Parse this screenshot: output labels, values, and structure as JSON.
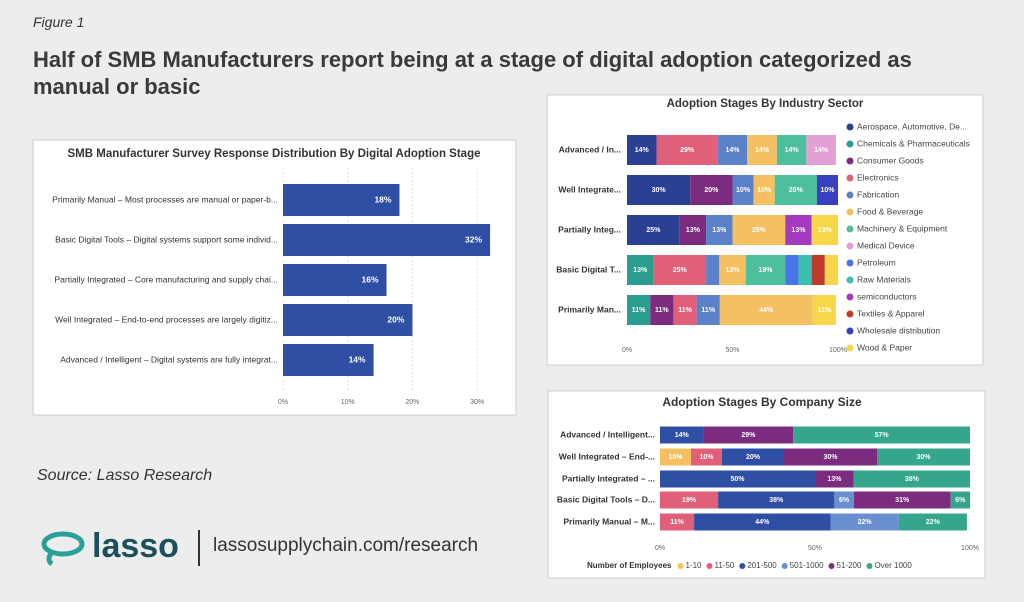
{
  "figure_label": "Figure 1",
  "title": "Half of SMB Manufacturers report being at a stage of digital adoption categorized as manual or basic",
  "source": "Source: Lasso Research",
  "logo_text": "lasso",
  "url": "lassosupplychain.com/research",
  "chart_data": [
    {
      "type": "hbar",
      "title": "SMB Manufacturer Survey Response Distribution By Digital Adoption Stage",
      "categories": [
        "Primarily Manual – Most processes are manual or paper-b...",
        "Basic Digital Tools – Digital systems support some individ...",
        "Partially Integrated – Core manufacturing and supply chai...",
        "Well Integrated – End-to-end processes are largely digitiz...",
        "Advanced / Intelligent – Digital systems are fully integrat..."
      ],
      "values": [
        18,
        32,
        16,
        20,
        14
      ],
      "value_labels": [
        "18%",
        "32%",
        "16%",
        "20%",
        "14%"
      ],
      "color": "#2e4fa3",
      "xlim": [
        0,
        34
      ],
      "xticks": [
        {
          "value": 0,
          "label": "0%"
        },
        {
          "value": 10,
          "label": "10%"
        },
        {
          "value": 20,
          "label": "20%"
        },
        {
          "value": 30,
          "label": "30%"
        }
      ],
      "grid": true
    },
    {
      "type": "stacked_hbar",
      "title": "Adoption Stages By Industry Sector",
      "categories": [
        "Advanced / In...",
        "Well Integrate...",
        "Partially Integ...",
        "Basic Digital T...",
        "Primarily Man..."
      ],
      "xlim": [
        0,
        100
      ],
      "xticks": [
        {
          "value": 0,
          "label": "0%"
        },
        {
          "value": 50,
          "label": "50%"
        },
        {
          "value": 100,
          "label": "100%"
        }
      ],
      "legend": "right",
      "series": [
        {
          "name": "Aerospace, Automotive, De...",
          "color": "#2b3f94",
          "values": [
            14,
            30,
            25,
            null,
            null
          ],
          "value_labels": [
            "14%",
            "30%",
            "25%",
            null,
            null
          ]
        },
        {
          "name": "Chemicals & Pharmaceuticals",
          "color": "#2a9d8f",
          "values": [
            null,
            null,
            null,
            12.5,
            11
          ],
          "value_labels": [
            null,
            null,
            null,
            "13%",
            "11%"
          ]
        },
        {
          "name": "Consumer Goods",
          "color": "#7b2c7f",
          "values": [
            null,
            20,
            12.5,
            null,
            11
          ],
          "value_labels": [
            null,
            "20%",
            "13%",
            null,
            "11%"
          ]
        },
        {
          "name": "Electronics",
          "color": "#e0607a",
          "values": [
            29,
            null,
            null,
            25,
            11
          ],
          "value_labels": [
            "29%",
            null,
            null,
            "25%",
            "11%"
          ]
        },
        {
          "name": "Fabrication",
          "color": "#5b82c9",
          "values": [
            14,
            10,
            12.5,
            6.25,
            11
          ],
          "value_labels": [
            "14%",
            "10%",
            "13%",
            null,
            "11%"
          ]
        },
        {
          "name": "Food & Beverage",
          "color": "#f5c062",
          "values": [
            14,
            10,
            25,
            12.5,
            44
          ],
          "value_labels": [
            "14%",
            "10%",
            "25%",
            "13%",
            "44%"
          ]
        },
        {
          "name": "Machinery & Equipment",
          "color": "#4dbf9c",
          "values": [
            14,
            20,
            null,
            18.75,
            null
          ],
          "value_labels": [
            "14%",
            "20%",
            null,
            "19%",
            null
          ]
        },
        {
          "name": "Medical Device",
          "color": "#e3a0d4",
          "values": [
            14,
            null,
            null,
            null,
            null
          ],
          "value_labels": [
            "14%",
            null,
            null,
            null,
            null
          ]
        },
        {
          "name": "Petroleum",
          "color": "#4a73e8",
          "values": [
            null,
            null,
            null,
            6.25,
            null
          ],
          "value_labels": [
            null,
            null,
            null,
            null,
            null
          ]
        },
        {
          "name": "Raw Materials",
          "color": "#3bbfb2",
          "values": [
            null,
            null,
            null,
            6.25,
            null
          ],
          "value_labels": [
            null,
            null,
            null,
            null,
            null
          ]
        },
        {
          "name": "semiconductors",
          "color": "#a23bbd",
          "values": [
            null,
            null,
            12.5,
            null,
            null
          ],
          "value_labels": [
            null,
            null,
            "13%",
            null,
            null
          ]
        },
        {
          "name": "Textiles & Apparel",
          "color": "#c0392b",
          "values": [
            null,
            null,
            null,
            6.25,
            null
          ],
          "value_labels": [
            null,
            null,
            null,
            null,
            null
          ]
        },
        {
          "name": "Wholesale distribution",
          "color": "#3a3fc0",
          "values": [
            null,
            10,
            null,
            null,
            null
          ],
          "value_labels": [
            null,
            "10%",
            null,
            null,
            null
          ]
        },
        {
          "name": "Wood & Paper",
          "color": "#f7d64a",
          "values": [
            null,
            null,
            12.5,
            6.25,
            11
          ],
          "value_labels": [
            null,
            null,
            "13%",
            null,
            "11%"
          ]
        }
      ]
    },
    {
      "type": "stacked_hbar",
      "title": "Adoption Stages By Company Size",
      "categories": [
        "Advanced / Intelligent...",
        "Well Integrated – End-...",
        "Partially Integrated – ...",
        "Basic Digital Tools – D...",
        "Primarily Manual – M..."
      ],
      "xlim": [
        0,
        100
      ],
      "xticks": [
        {
          "value": 0,
          "label": "0%"
        },
        {
          "value": 50,
          "label": "50%"
        },
        {
          "value": 100,
          "label": "100%"
        }
      ],
      "legend": "bottom",
      "legend_title": "Number of Employees",
      "series": [
        {
          "name": "1-10",
          "color": "#f5c062",
          "values": [
            null,
            10,
            null,
            null,
            null
          ],
          "value_labels": [
            null,
            "10%",
            null,
            null,
            null
          ]
        },
        {
          "name": "11-50",
          "color": "#e0607a",
          "values": [
            null,
            10,
            null,
            18.75,
            11
          ],
          "value_labels": [
            null,
            "10%",
            null,
            "19%",
            "11%"
          ]
        },
        {
          "name": "201-500",
          "color": "#2e4fa3",
          "values": [
            14,
            20,
            50,
            37.5,
            44
          ],
          "value_labels": [
            "14%",
            "20%",
            "50%",
            "38%",
            "44%"
          ]
        },
        {
          "name": "501-1000",
          "color": "#6a8fd0",
          "values": [
            null,
            null,
            null,
            6.25,
            22
          ],
          "value_labels": [
            null,
            null,
            null,
            "6%",
            "22%"
          ]
        },
        {
          "name": "51-200",
          "color": "#7b2c7f",
          "values": [
            29,
            30,
            12.5,
            31.25,
            null
          ],
          "value_labels": [
            "29%",
            "30%",
            "13%",
            "31%",
            null
          ]
        },
        {
          "name": "Over 1000",
          "color": "#35a58c",
          "values": [
            57,
            30,
            37.5,
            6.25,
            22
          ],
          "value_labels": [
            "57%",
            "30%",
            "38%",
            "6%",
            "22%"
          ]
        }
      ]
    }
  ]
}
